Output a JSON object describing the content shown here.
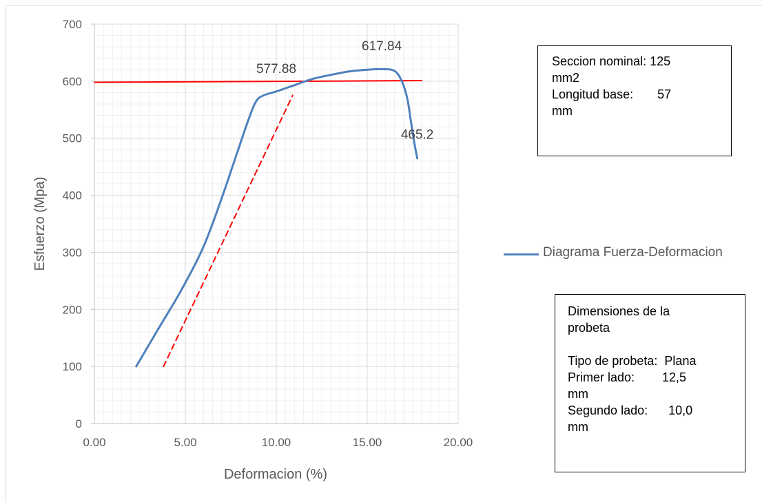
{
  "chart_data": {
    "type": "line",
    "xlabel": "Deformacion (%)",
    "ylabel": "Esfuerzo (Mpa)",
    "xlim": [
      0,
      20
    ],
    "ylim": [
      0,
      700
    ],
    "x_ticks": [
      "0.00",
      "5.00",
      "10.00",
      "15.00",
      "20.00"
    ],
    "y_ticks": [
      "0",
      "100",
      "200",
      "300",
      "400",
      "500",
      "600",
      "700"
    ],
    "grid": true,
    "legend_position": "right",
    "series": [
      {
        "name": "Diagrama Fuerza-Deformacion",
        "color": "#4f81bd",
        "style": "solid",
        "x": [
          2.3,
          3.5,
          4.8,
          6.0,
          7.0,
          7.8,
          8.5,
          8.9,
          9.3,
          10.0,
          11.0,
          12.0,
          13.0,
          14.0,
          15.0,
          15.8,
          16.5,
          16.9,
          17.2,
          17.4,
          17.6,
          17.75
        ],
        "y": [
          100,
          165,
          235,
          310,
          395,
          470,
          535,
          565,
          575,
          582,
          593,
          604,
          611,
          617,
          620,
          621,
          618,
          600,
          570,
          530,
          490,
          465
        ]
      },
      {
        "name": "",
        "color": "#ff0000",
        "style": "dashed",
        "x": [
          3.8,
          10.9
        ],
        "y": [
          100,
          575
        ]
      },
      {
        "name": "",
        "color": "#ff0000",
        "style": "solid",
        "x": [
          0,
          18
        ],
        "y": [
          598,
          601
        ]
      }
    ],
    "data_labels": [
      {
        "text": "577.88",
        "x": 10.0,
        "y": 578
      },
      {
        "text": "617.84",
        "x": 15.8,
        "y": 618
      },
      {
        "text": "465.2",
        "x": 17.75,
        "y": 465
      }
    ]
  },
  "legend": {
    "label": "Diagrama Fuerza-Deformacion"
  },
  "box1": {
    "line1": "Seccion nominal: 125",
    "line2": "mm2",
    "line3": "Longitud base:       57",
    "line4": "mm"
  },
  "box2": {
    "line1": "Dimensiones de la",
    "line2": "probeta",
    "line3": "Tipo de probeta:  Plana",
    "line4": "Primer lado:        12,5",
    "line5": "mm",
    "line6": "Segundo lado:      10,0",
    "line7": "mm"
  }
}
